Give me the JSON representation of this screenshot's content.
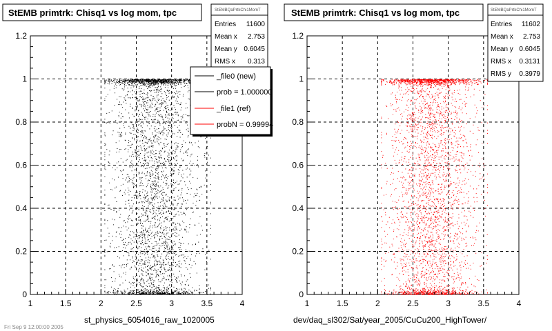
{
  "colors": {
    "ref": "#ff0000",
    "new": "#000000",
    "grid": "#000000",
    "background": "#ffffff"
  },
  "footer": {
    "text": "Fri Sep 9 12:00:00 2005"
  },
  "panels": [
    {
      "title": "StEMB primtrk: Chisq1 vs log mom, tpc",
      "xlabel": "st_physics_6054016_raw_1020005",
      "stats": {
        "header": "StEMBQaPrtkChi1MomT",
        "rows": [
          {
            "label": "Entries",
            "value": "11600"
          },
          {
            "label": "Mean x",
            "value": "2.753"
          },
          {
            "label": "Mean y",
            "value": "0.6045"
          },
          {
            "label": "RMS x",
            "value": "0.313"
          }
        ]
      },
      "legend": {
        "entries": [
          {
            "text": "_file0 (new)",
            "color": "#000000"
          },
          {
            "text": "prob = 1.000000",
            "color": "#000000"
          },
          {
            "text": "_file1 (ref)",
            "color": "#ff0000"
          },
          {
            "text": "probN = 0.99994",
            "color": "#ff0000"
          }
        ]
      }
    },
    {
      "title": "StEMB primtrk: Chisq1 vs log mom, tpc",
      "xlabel": "dev/daq_sl302/Sat/year_2005/CuCu200_HighTower/",
      "stats": {
        "header": "StEMBQaPrtkChi1MomT",
        "rows": [
          {
            "label": "Entries",
            "value": "11602"
          },
          {
            "label": "Mean x",
            "value": "2.753"
          },
          {
            "label": "Mean y",
            "value": "0.6045"
          },
          {
            "label": "RMS x",
            "value": "0.3131"
          },
          {
            "label": "RMS y",
            "value": "0.3979"
          }
        ]
      }
    }
  ],
  "chart_data": [
    {
      "type": "scatter",
      "title": "StEMB primtrk: Chisq1 vs log mom, tpc",
      "xlabel": "st_physics_6054016_raw_1020005",
      "xlim": [
        1,
        4
      ],
      "ylim": [
        0,
        1.2
      ],
      "xticks": [
        "1",
        "1.5",
        "2",
        "2.5",
        "3",
        "3.5",
        "4"
      ],
      "yticks": [
        "0",
        "0.2",
        "0.4",
        "0.6",
        "0.8",
        "1",
        "1.2"
      ],
      "grid": true,
      "series": [
        {
          "name": "_file0 (new)",
          "color": "#000000",
          "entries": 11600,
          "mean_x": 2.753,
          "mean_y": 0.6045,
          "rms_x": 0.313,
          "x_range": [
            2.05,
            3.55
          ],
          "y_range": [
            0,
            1
          ],
          "dense_bands_y": [
            0.0,
            1.0
          ]
        }
      ]
    },
    {
      "type": "scatter",
      "title": "StEMB primtrk: Chisq1 vs log mom, tpc",
      "xlabel": "dev/daq_sl302/Sat/year_2005/CuCu200_HighTower/",
      "xlim": [
        1,
        4
      ],
      "ylim": [
        0,
        1.2
      ],
      "xticks": [
        "1",
        "1.5",
        "2",
        "2.5",
        "3",
        "3.5",
        "4"
      ],
      "yticks": [
        "0",
        "0.2",
        "0.4",
        "0.6",
        "0.8",
        "1",
        "1.2"
      ],
      "grid": true,
      "series": [
        {
          "name": "_file1 (ref)",
          "color": "#ff0000",
          "entries": 11602,
          "mean_x": 2.753,
          "mean_y": 0.6045,
          "rms_x": 0.3131,
          "rms_y": 0.3979,
          "x_range": [
            2.05,
            3.55
          ],
          "y_range": [
            0,
            1
          ],
          "dense_bands_y": [
            0.0,
            1.0
          ]
        }
      ]
    }
  ]
}
